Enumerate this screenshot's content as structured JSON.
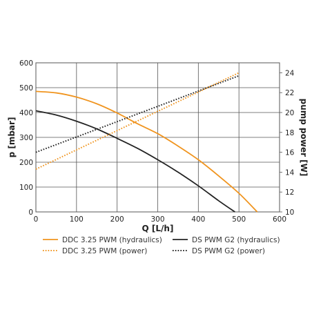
{
  "chart_data": {
    "type": "line",
    "xlabel": "Q [L/h]",
    "ylabel_left": "p [mbar]",
    "ylabel_right": "pump power [W]",
    "xlim": [
      0,
      600
    ],
    "ylim_left": [
      0,
      600
    ],
    "ylim_right": [
      10,
      25
    ],
    "x_ticks": [
      0,
      100,
      200,
      300,
      400,
      500,
      600
    ],
    "y_left_ticks": [
      0,
      100,
      200,
      300,
      400,
      500,
      600
    ],
    "y_right_ticks": [
      10,
      12,
      14,
      16,
      18,
      20,
      22,
      24
    ],
    "grid": true,
    "legend_position": "bottom",
    "series": [
      {
        "name": "DDC 3.25 PWM (hydraulics)",
        "axis": "left",
        "style": "solid",
        "color": "#f0941e",
        "x": [
          0,
          50,
          100,
          150,
          200,
          250,
          300,
          350,
          400,
          450,
          500,
          545
        ],
        "y": [
          485,
          479,
          462,
          435,
          398,
          355,
          315,
          265,
          210,
          145,
          75,
          0
        ]
      },
      {
        "name": "DS PWM G2 (hydraulics)",
        "axis": "left",
        "style": "solid",
        "color": "#222222",
        "x": [
          0,
          50,
          100,
          150,
          200,
          250,
          300,
          350,
          400,
          450,
          490
        ],
        "y": [
          407,
          390,
          365,
          334,
          296,
          256,
          210,
          160,
          105,
          45,
          0
        ]
      },
      {
        "name": "DDC 3.25 PWM (power)",
        "axis": "right",
        "style": "dotted",
        "color": "#f0941e",
        "x": [
          0,
          500
        ],
        "y": [
          14.3,
          24.0
        ]
      },
      {
        "name": "DS PWM G2 (power)",
        "axis": "right",
        "style": "dotted",
        "color": "#222222",
        "x": [
          0,
          500
        ],
        "y": [
          16.0,
          23.7
        ]
      }
    ]
  }
}
